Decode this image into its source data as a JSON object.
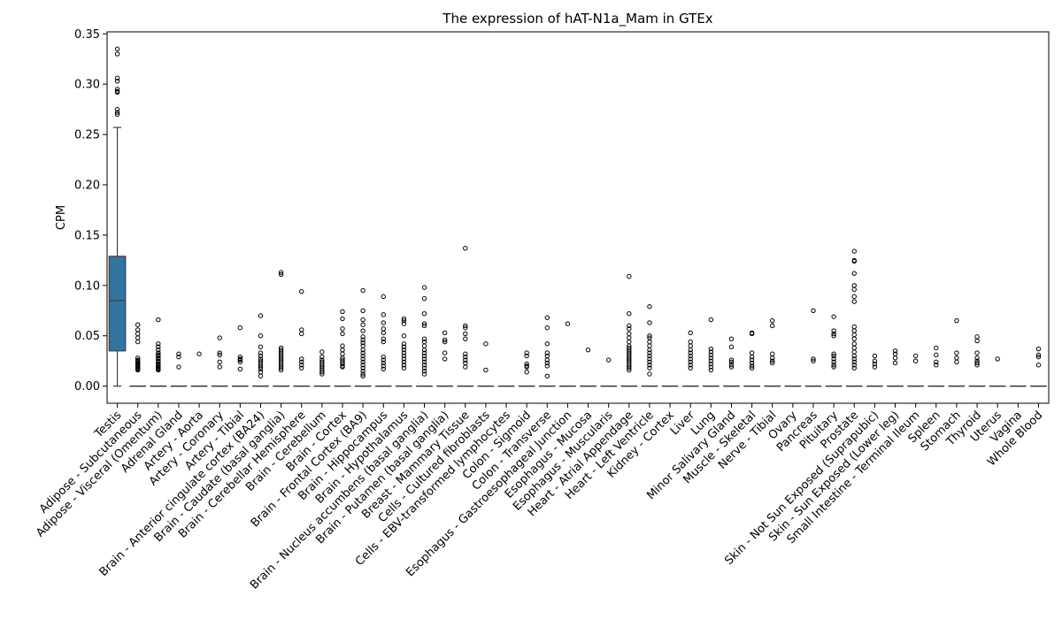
{
  "chart_data": {
    "type": "box",
    "title": "The expression of hAT-N1a_Mam in GTEx",
    "xlabel": "",
    "ylabel": "CPM",
    "ylim": [
      -0.017,
      0.352
    ],
    "yticks": [
      "0.00",
      "0.05",
      "0.10",
      "0.15",
      "0.20",
      "0.25",
      "0.30",
      "0.35"
    ],
    "grid": false,
    "box_color": "#3274a1",
    "categories": [
      "Testis",
      "Adipose - Subcutaneous",
      "Adipose - Visceral (Omentum)",
      "Adrenal Gland",
      "Artery - Aorta",
      "Artery - Coronary",
      "Artery - Tibial",
      "Brain - Anterior cingulate cortex (BA24)",
      "Brain - Caudate (basal ganglia)",
      "Brain - Cerebellar Hemisphere",
      "Brain - Cerebellum",
      "Brain - Cortex",
      "Brain - Frontal Cortex (BA9)",
      "Brain - Hippocampus",
      "Brain - Hypothalamus",
      "Brain - Nucleus accumbens (basal ganglia)",
      "Brain - Putamen (basal ganglia)",
      "Breast - Mammary Tissue",
      "Cells - Cultured fibroblasts",
      "Cells - EBV-transformed lymphocytes",
      "Colon - Sigmoid",
      "Colon - Transverse",
      "Esophagus - Gastroesophageal Junction",
      "Esophagus - Mucosa",
      "Esophagus - Muscularis",
      "Heart - Atrial Appendage",
      "Heart - Left Ventricle",
      "Kidney - Cortex",
      "Liver",
      "Lung",
      "Minor Salivary Gland",
      "Muscle - Skeletal",
      "Nerve - Tibial",
      "Ovary",
      "Pancreas",
      "Pituitary",
      "Prostate",
      "Skin - Not Sun Exposed (Suprapubic)",
      "Skin - Sun Exposed (Lower leg)",
      "Small Intestine - Terminal Ileum",
      "Spleen",
      "Stomach",
      "Thyroid",
      "Uterus",
      "Vagina",
      "Whole Blood"
    ],
    "boxes": [
      {
        "q1": 0.035,
        "median": 0.085,
        "q3": 0.129,
        "whisker_low": 0.0,
        "whisker_high": 0.257,
        "outliers": [
          0.335,
          0.33,
          0.306,
          0.303,
          0.295,
          0.293,
          0.292,
          0.275,
          0.272,
          0.27
        ]
      },
      {
        "q1": 0,
        "median": 0,
        "q3": 0,
        "whisker_low": 0,
        "whisker_high": 0,
        "outliers": [
          0.061,
          0.056,
          0.052,
          0.048,
          0.044,
          0.028,
          0.026,
          0.025,
          0.024,
          0.023,
          0.022,
          0.021,
          0.02,
          0.019,
          0.018,
          0.017,
          0.016
        ]
      },
      {
        "q1": 0,
        "median": 0,
        "q3": 0,
        "whisker_low": 0,
        "whisker_high": 0,
        "outliers": [
          0.066,
          0.042,
          0.039,
          0.036,
          0.033,
          0.031,
          0.03,
          0.028,
          0.027,
          0.025,
          0.024,
          0.022,
          0.021,
          0.02,
          0.019,
          0.018,
          0.017,
          0.016
        ]
      },
      {
        "q1": 0,
        "median": 0,
        "q3": 0,
        "whisker_low": 0,
        "whisker_high": 0,
        "outliers": [
          0.032,
          0.029,
          0.019
        ]
      },
      {
        "q1": 0,
        "median": 0,
        "q3": 0,
        "whisker_low": 0,
        "whisker_high": 0,
        "outliers": [
          0.032
        ]
      },
      {
        "q1": 0,
        "median": 0,
        "q3": 0,
        "whisker_low": 0,
        "whisker_high": 0,
        "outliers": [
          0.048,
          0.033,
          0.031,
          0.024,
          0.019
        ]
      },
      {
        "q1": 0,
        "median": 0,
        "q3": 0,
        "whisker_low": 0,
        "whisker_high": 0,
        "outliers": [
          0.058,
          0.029,
          0.027,
          0.026,
          0.024,
          0.017
        ]
      },
      {
        "q1": 0,
        "median": 0,
        "q3": 0,
        "whisker_low": 0,
        "whisker_high": 0,
        "outliers": [
          0.07,
          0.05,
          0.039,
          0.033,
          0.03,
          0.027,
          0.025,
          0.023,
          0.021,
          0.019,
          0.017,
          0.014,
          0.01
        ]
      },
      {
        "q1": 0,
        "median": 0,
        "q3": 0,
        "whisker_low": 0,
        "whisker_high": 0,
        "outliers": [
          0.113,
          0.111,
          0.038,
          0.036,
          0.034,
          0.032,
          0.03,
          0.028,
          0.026,
          0.024,
          0.022,
          0.02,
          0.018,
          0.016
        ]
      },
      {
        "q1": 0,
        "median": 0,
        "q3": 0,
        "whisker_low": 0,
        "whisker_high": 0,
        "outliers": [
          0.094,
          0.056,
          0.052,
          0.027,
          0.024,
          0.021,
          0.018
        ]
      },
      {
        "q1": 0,
        "median": 0,
        "q3": 0,
        "whisker_low": 0,
        "whisker_high": 0,
        "outliers": [
          0.034,
          0.029,
          0.026,
          0.024,
          0.022,
          0.02,
          0.018,
          0.016,
          0.014,
          0.012
        ]
      },
      {
        "q1": 0,
        "median": 0,
        "q3": 0,
        "whisker_low": 0,
        "whisker_high": 0,
        "outliers": [
          0.074,
          0.067,
          0.057,
          0.052,
          0.04,
          0.036,
          0.032,
          0.028,
          0.026,
          0.024,
          0.022,
          0.02,
          0.019
        ]
      },
      {
        "q1": 0,
        "median": 0,
        "q3": 0,
        "whisker_low": 0,
        "whisker_high": 0,
        "outliers": [
          0.095,
          0.075,
          0.066,
          0.061,
          0.055,
          0.049,
          0.046,
          0.043,
          0.04,
          0.036,
          0.033,
          0.03,
          0.027,
          0.024,
          0.021,
          0.018,
          0.015,
          0.012,
          0.01
        ]
      },
      {
        "q1": 0,
        "median": 0,
        "q3": 0,
        "whisker_low": 0,
        "whisker_high": 0,
        "outliers": [
          0.089,
          0.071,
          0.063,
          0.057,
          0.053,
          0.047,
          0.044,
          0.029,
          0.026,
          0.023,
          0.02,
          0.017
        ]
      },
      {
        "q1": 0,
        "median": 0,
        "q3": 0,
        "whisker_low": 0,
        "whisker_high": 0,
        "outliers": [
          0.067,
          0.065,
          0.062,
          0.05,
          0.042,
          0.039,
          0.036,
          0.033,
          0.03,
          0.027,
          0.024,
          0.021,
          0.018
        ]
      },
      {
        "q1": 0,
        "median": 0,
        "q3": 0,
        "whisker_low": 0,
        "whisker_high": 0,
        "outliers": [
          0.098,
          0.087,
          0.072,
          0.062,
          0.06,
          0.047,
          0.044,
          0.04,
          0.036,
          0.033,
          0.03,
          0.027,
          0.024,
          0.021,
          0.018,
          0.015,
          0.012
        ]
      },
      {
        "q1": 0,
        "median": 0,
        "q3": 0,
        "whisker_low": 0,
        "whisker_high": 0,
        "outliers": [
          0.053,
          0.046,
          0.044,
          0.033,
          0.027
        ]
      },
      {
        "q1": 0,
        "median": 0,
        "q3": 0,
        "whisker_low": 0,
        "whisker_high": 0,
        "outliers": [
          0.137,
          0.06,
          0.058,
          0.052,
          0.047,
          0.032,
          0.029,
          0.026,
          0.023,
          0.019
        ]
      },
      {
        "q1": 0,
        "median": 0,
        "q3": 0,
        "whisker_low": 0,
        "whisker_high": 0,
        "outliers": [
          0.042,
          0.016
        ]
      },
      {
        "q1": 0,
        "median": 0,
        "q3": 0,
        "whisker_low": 0,
        "whisker_high": 0,
        "outliers": []
      },
      {
        "q1": 0,
        "median": 0,
        "q3": 0,
        "whisker_low": 0,
        "whisker_high": 0,
        "outliers": [
          0.033,
          0.03,
          0.022,
          0.02,
          0.019,
          0.014
        ]
      },
      {
        "q1": 0,
        "median": 0,
        "q3": 0,
        "whisker_low": 0,
        "whisker_high": 0,
        "outliers": [
          0.068,
          0.058,
          0.042,
          0.033,
          0.03,
          0.026,
          0.023,
          0.02,
          0.01
        ]
      },
      {
        "q1": 0,
        "median": 0,
        "q3": 0,
        "whisker_low": 0,
        "whisker_high": 0,
        "outliers": [
          0.062
        ]
      },
      {
        "q1": 0,
        "median": 0,
        "q3": 0,
        "whisker_low": 0,
        "whisker_high": 0,
        "outliers": [
          0.036
        ]
      },
      {
        "q1": 0,
        "median": 0,
        "q3": 0,
        "whisker_low": 0,
        "whisker_high": 0,
        "outliers": [
          0.026
        ]
      },
      {
        "q1": 0,
        "median": 0,
        "q3": 0,
        "whisker_low": 0,
        "whisker_high": 0,
        "outliers": [
          0.109,
          0.072,
          0.06,
          0.057,
          0.052,
          0.048,
          0.044,
          0.04,
          0.038,
          0.036,
          0.034,
          0.032,
          0.03,
          0.028,
          0.026,
          0.024,
          0.022,
          0.02,
          0.018,
          0.016
        ]
      },
      {
        "q1": 0,
        "median": 0,
        "q3": 0,
        "whisker_low": 0,
        "whisker_high": 0,
        "outliers": [
          0.079,
          0.063,
          0.05,
          0.048,
          0.044,
          0.04,
          0.036,
          0.033,
          0.03,
          0.027,
          0.024,
          0.021,
          0.018,
          0.012
        ]
      },
      {
        "q1": 0,
        "median": 0,
        "q3": 0,
        "whisker_low": 0,
        "whisker_high": 0,
        "outliers": []
      },
      {
        "q1": 0,
        "median": 0,
        "q3": 0,
        "whisker_low": 0,
        "whisker_high": 0,
        "outliers": [
          0.053,
          0.044,
          0.04,
          0.036,
          0.033,
          0.03,
          0.027,
          0.024,
          0.021,
          0.018
        ]
      },
      {
        "q1": 0,
        "median": 0,
        "q3": 0,
        "whisker_low": 0,
        "whisker_high": 0,
        "outliers": [
          0.066,
          0.037,
          0.034,
          0.031,
          0.028,
          0.025,
          0.022,
          0.019,
          0.016
        ]
      },
      {
        "q1": 0,
        "median": 0,
        "q3": 0,
        "whisker_low": 0,
        "whisker_high": 0,
        "outliers": [
          0.047,
          0.039,
          0.026,
          0.024,
          0.021,
          0.019
        ]
      },
      {
        "q1": 0,
        "median": 0,
        "q3": 0,
        "whisker_low": 0,
        "whisker_high": 0,
        "outliers": [
          0.053,
          0.052,
          0.033,
          0.029,
          0.026,
          0.023,
          0.02,
          0.018
        ]
      },
      {
        "q1": 0,
        "median": 0,
        "q3": 0,
        "whisker_low": 0,
        "whisker_high": 0,
        "outliers": [
          0.065,
          0.06,
          0.032,
          0.028,
          0.025,
          0.023
        ]
      },
      {
        "q1": 0,
        "median": 0,
        "q3": 0,
        "whisker_low": 0,
        "whisker_high": 0,
        "outliers": []
      },
      {
        "q1": 0,
        "median": 0,
        "q3": 0,
        "whisker_low": 0,
        "whisker_high": 0,
        "outliers": [
          0.075,
          0.027,
          0.025
        ]
      },
      {
        "q1": 0,
        "median": 0,
        "q3": 0,
        "whisker_low": 0,
        "whisker_high": 0,
        "outliers": [
          0.069,
          0.055,
          0.052,
          0.05,
          0.032,
          0.03,
          0.027,
          0.024,
          0.021,
          0.019
        ]
      },
      {
        "q1": 0,
        "median": 0,
        "q3": 0,
        "whisker_low": 0,
        "whisker_high": 0,
        "outliers": [
          0.134,
          0.125,
          0.124,
          0.112,
          0.1,
          0.096,
          0.089,
          0.084,
          0.059,
          0.055,
          0.051,
          0.047,
          0.042,
          0.038,
          0.034,
          0.03,
          0.027,
          0.024,
          0.021,
          0.018
        ]
      },
      {
        "q1": 0,
        "median": 0,
        "q3": 0,
        "whisker_low": 0,
        "whisker_high": 0,
        "outliers": [
          0.03,
          0.025,
          0.022,
          0.019
        ]
      },
      {
        "q1": 0,
        "median": 0,
        "q3": 0,
        "whisker_low": 0,
        "whisker_high": 0,
        "outliers": [
          0.035,
          0.032,
          0.028,
          0.023
        ]
      },
      {
        "q1": 0,
        "median": 0,
        "q3": 0,
        "whisker_low": 0,
        "whisker_high": 0,
        "outliers": [
          0.03,
          0.025
        ]
      },
      {
        "q1": 0,
        "median": 0,
        "q3": 0,
        "whisker_low": 0,
        "whisker_high": 0,
        "outliers": [
          0.038,
          0.031,
          0.024,
          0.021
        ]
      },
      {
        "q1": 0,
        "median": 0,
        "q3": 0,
        "whisker_low": 0,
        "whisker_high": 0,
        "outliers": [
          0.065,
          0.033,
          0.028,
          0.024
        ]
      },
      {
        "q1": 0,
        "median": 0,
        "q3": 0,
        "whisker_low": 0,
        "whisker_high": 0,
        "outliers": [
          0.049,
          0.045,
          0.033,
          0.028,
          0.025,
          0.023,
          0.021
        ]
      },
      {
        "q1": 0,
        "median": 0,
        "q3": 0,
        "whisker_low": 0,
        "whisker_high": 0,
        "outliers": [
          0.027
        ]
      },
      {
        "q1": 0,
        "median": 0,
        "q3": 0,
        "whisker_low": 0,
        "whisker_high": 0,
        "outliers": []
      },
      {
        "q1": 0,
        "median": 0,
        "q3": 0,
        "whisker_low": 0,
        "whisker_high": 0,
        "outliers": [
          0.037,
          0.031,
          0.029,
          0.021
        ]
      }
    ]
  }
}
